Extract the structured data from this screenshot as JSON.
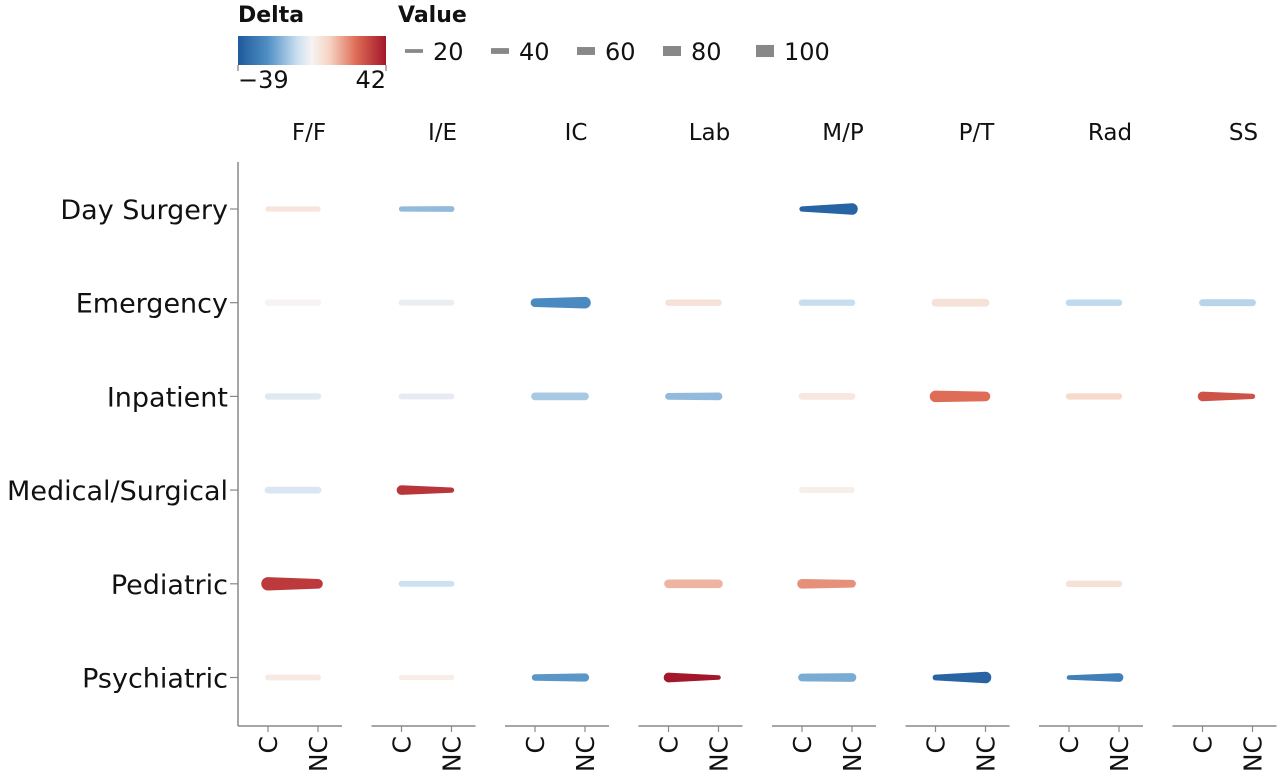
{
  "chart_data": {
    "type": "sparkline-matrix",
    "legend": {
      "color_title": "Delta",
      "color_min_label": "−39",
      "color_max_label": "42",
      "color_min": -39,
      "color_max": 42,
      "size_title": "Value",
      "size_labels": [
        "20",
        "40",
        "60",
        "80",
        "100"
      ],
      "size_values": [
        20,
        40,
        60,
        80,
        100
      ]
    },
    "columns": [
      "F/F",
      "I/E",
      "IC",
      "Lab",
      "M/P",
      "P/T",
      "Rad",
      "SS"
    ],
    "rows": [
      "Day Surgery",
      "Emergency",
      "Inpatient",
      "Medical/Surgical",
      "Pediatric",
      "Psychiatric"
    ],
    "x_ticks": [
      "C",
      "NC"
    ],
    "cells": [
      {
        "row": "Day Surgery",
        "col": "F/F",
        "c": 12,
        "nc": 12,
        "delta": 5
      },
      {
        "row": "Day Surgery",
        "col": "I/E",
        "c": 12,
        "nc": 15,
        "delta": -15
      },
      {
        "row": "Day Surgery",
        "col": "M/P",
        "c": 12,
        "nc": 45,
        "delta": -36
      },
      {
        "row": "Emergency",
        "col": "F/F",
        "c": 18,
        "nc": 18,
        "delta": 0
      },
      {
        "row": "Emergency",
        "col": "I/E",
        "c": 15,
        "nc": 15,
        "delta": -2
      },
      {
        "row": "Emergency",
        "col": "IC",
        "c": 30,
        "nc": 45,
        "delta": -25
      },
      {
        "row": "Emergency",
        "col": "Lab",
        "c": 18,
        "nc": 18,
        "delta": 6
      },
      {
        "row": "Emergency",
        "col": "M/P",
        "c": 18,
        "nc": 18,
        "delta": -8
      },
      {
        "row": "Emergency",
        "col": "P/T",
        "c": 25,
        "nc": 25,
        "delta": 6
      },
      {
        "row": "Emergency",
        "col": "Rad",
        "c": 18,
        "nc": 18,
        "delta": -9
      },
      {
        "row": "Emergency",
        "col": "SS",
        "c": 20,
        "nc": 20,
        "delta": -10
      },
      {
        "row": "Inpatient",
        "col": "F/F",
        "c": 18,
        "nc": 18,
        "delta": -4
      },
      {
        "row": "Inpatient",
        "col": "I/E",
        "c": 15,
        "nc": 15,
        "delta": -3
      },
      {
        "row": "Inpatient",
        "col": "IC",
        "c": 25,
        "nc": 25,
        "delta": -12
      },
      {
        "row": "Inpatient",
        "col": "Lab",
        "c": 20,
        "nc": 25,
        "delta": -15
      },
      {
        "row": "Inpatient",
        "col": "M/P",
        "c": 20,
        "nc": 20,
        "delta": 4
      },
      {
        "row": "Inpatient",
        "col": "P/T",
        "c": 45,
        "nc": 35,
        "delta": 25
      },
      {
        "row": "Inpatient",
        "col": "Rad",
        "c": 18,
        "nc": 18,
        "delta": 8
      },
      {
        "row": "Inpatient",
        "col": "SS",
        "c": 35,
        "nc": 12,
        "delta": 30
      },
      {
        "row": "Medical/Surgical",
        "col": "F/F",
        "c": 20,
        "nc": 20,
        "delta": -5
      },
      {
        "row": "Medical/Surgical",
        "col": "I/E",
        "c": 35,
        "nc": 12,
        "delta": 36
      },
      {
        "row": "Medical/Surgical",
        "col": "M/P",
        "c": 15,
        "nc": 15,
        "delta": 2
      },
      {
        "row": "Pediatric",
        "col": "F/F",
        "c": 55,
        "nc": 35,
        "delta": 35
      },
      {
        "row": "Pediatric",
        "col": "I/E",
        "c": 15,
        "nc": 15,
        "delta": -7
      },
      {
        "row": "Pediatric",
        "col": "Lab",
        "c": 30,
        "nc": 30,
        "delta": 15
      },
      {
        "row": "Pediatric",
        "col": "M/P",
        "c": 35,
        "nc": 25,
        "delta": 20
      },
      {
        "row": "Pediatric",
        "col": "Rad",
        "c": 18,
        "nc": 18,
        "delta": 6
      },
      {
        "row": "Psychiatric",
        "col": "F/F",
        "c": 15,
        "nc": 15,
        "delta": 3
      },
      {
        "row": "Psychiatric",
        "col": "I/E",
        "c": 12,
        "nc": 12,
        "delta": 2
      },
      {
        "row": "Psychiatric",
        "col": "IC",
        "c": 18,
        "nc": 28,
        "delta": -22
      },
      {
        "row": "Psychiatric",
        "col": "Lab",
        "c": 35,
        "nc": 8,
        "delta": 42
      },
      {
        "row": "Psychiatric",
        "col": "M/P",
        "c": 25,
        "nc": 30,
        "delta": -18
      },
      {
        "row": "Psychiatric",
        "col": "P/T",
        "c": 15,
        "nc": 45,
        "delta": -36
      },
      {
        "row": "Psychiatric",
        "col": "Rad",
        "c": 8,
        "nc": 30,
        "delta": -28
      }
    ]
  }
}
